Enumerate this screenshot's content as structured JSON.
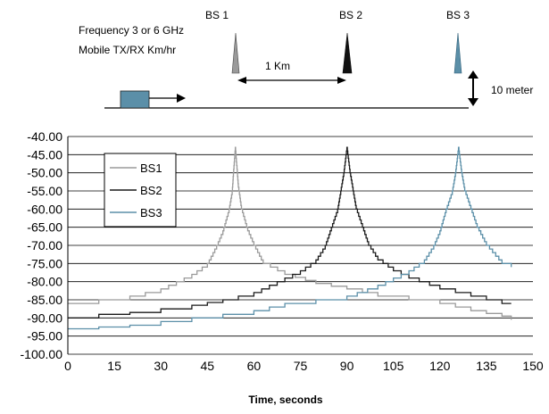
{
  "diagram": {
    "stations": [
      {
        "label": "BS 1",
        "color": "#9a9a9a"
      },
      {
        "label": "BS 2",
        "color": "#1a1a1a"
      },
      {
        "label": "BS 3",
        "color": "#5b8fa8"
      }
    ],
    "freq_text": "Frequency 3 or 6 GHz",
    "mobile_text": "Mobile TX/RX Km/hr",
    "distance_label": "1 Km",
    "height_label": "10 meter",
    "mobile_color": "#5b8fa8"
  },
  "chart_data": {
    "type": "line",
    "xlabel": "Time, seconds",
    "ylabel": "",
    "xlim": [
      0,
      150
    ],
    "ylim": [
      -100,
      -40
    ],
    "xticks": [
      0,
      15,
      30,
      45,
      60,
      75,
      90,
      105,
      120,
      135,
      150
    ],
    "xtick_labels": [
      "0",
      "15",
      "30",
      "45",
      "60",
      "75",
      "90",
      "105",
      "120",
      "135",
      "150"
    ],
    "yticks": [
      -40,
      -45,
      -50,
      -55,
      -60,
      -65,
      -70,
      -75,
      -80,
      -85,
      -90,
      -95,
      -100
    ],
    "ytick_labels": [
      "-40.00",
      "-45.00",
      "-50.00",
      "-55.00",
      "-60.00",
      "-65.00",
      "-70.00",
      "-75.00",
      "-80.00",
      "-85.00",
      "-90.00",
      "-95.00",
      "-100.00"
    ],
    "grid": "horizontal",
    "legend_position": "top-left",
    "series": [
      {
        "name": "BS1",
        "color": "#9a9a9a",
        "x": [
          0,
          10,
          20,
          30,
          40,
          45,
          48,
          50,
          52,
          53,
          54,
          55,
          56,
          58,
          60,
          63,
          70,
          80,
          90,
          100,
          110,
          120,
          130,
          140,
          143
        ],
        "y": [
          -86,
          -85,
          -84,
          -82,
          -78,
          -75,
          -70,
          -66,
          -60,
          -55,
          -43,
          -54,
          -60,
          -66,
          -70,
          -75,
          -78,
          -80.5,
          -82,
          -84,
          -85,
          -86,
          -88,
          -89.5,
          -90.5
        ]
      },
      {
        "name": "BS2",
        "color": "#1a1a1a",
        "x": [
          0,
          10,
          20,
          30,
          40,
          50,
          60,
          70,
          75,
          80,
          83,
          85,
          87,
          88,
          89,
          90,
          91,
          92,
          93,
          95,
          97,
          100,
          105,
          110,
          120,
          130,
          140,
          143
        ],
        "y": [
          -90,
          -89,
          -88.5,
          -87.5,
          -86.5,
          -85,
          -83,
          -79,
          -77,
          -74,
          -70,
          -65,
          -60,
          -55,
          -50,
          -43,
          -50,
          -55,
          -60,
          -65,
          -70,
          -74,
          -77,
          -79,
          -82,
          -84,
          -86,
          -86
        ]
      },
      {
        "name": "BS3",
        "color": "#5b8fa8",
        "x": [
          0,
          10,
          20,
          30,
          40,
          50,
          60,
          70,
          80,
          90,
          100,
          105,
          110,
          115,
          118,
          120,
          122,
          124,
          125,
          126,
          127,
          128,
          130,
          132,
          135,
          138,
          140,
          143
        ],
        "y": [
          -93,
          -92.5,
          -92,
          -91,
          -90,
          -89,
          -88,
          -86,
          -85,
          -84,
          -81,
          -79,
          -77,
          -74,
          -70,
          -66,
          -60,
          -55,
          -50,
          -43,
          -50,
          -55,
          -60,
          -65,
          -70,
          -73,
          -75,
          -76
        ]
      }
    ]
  }
}
